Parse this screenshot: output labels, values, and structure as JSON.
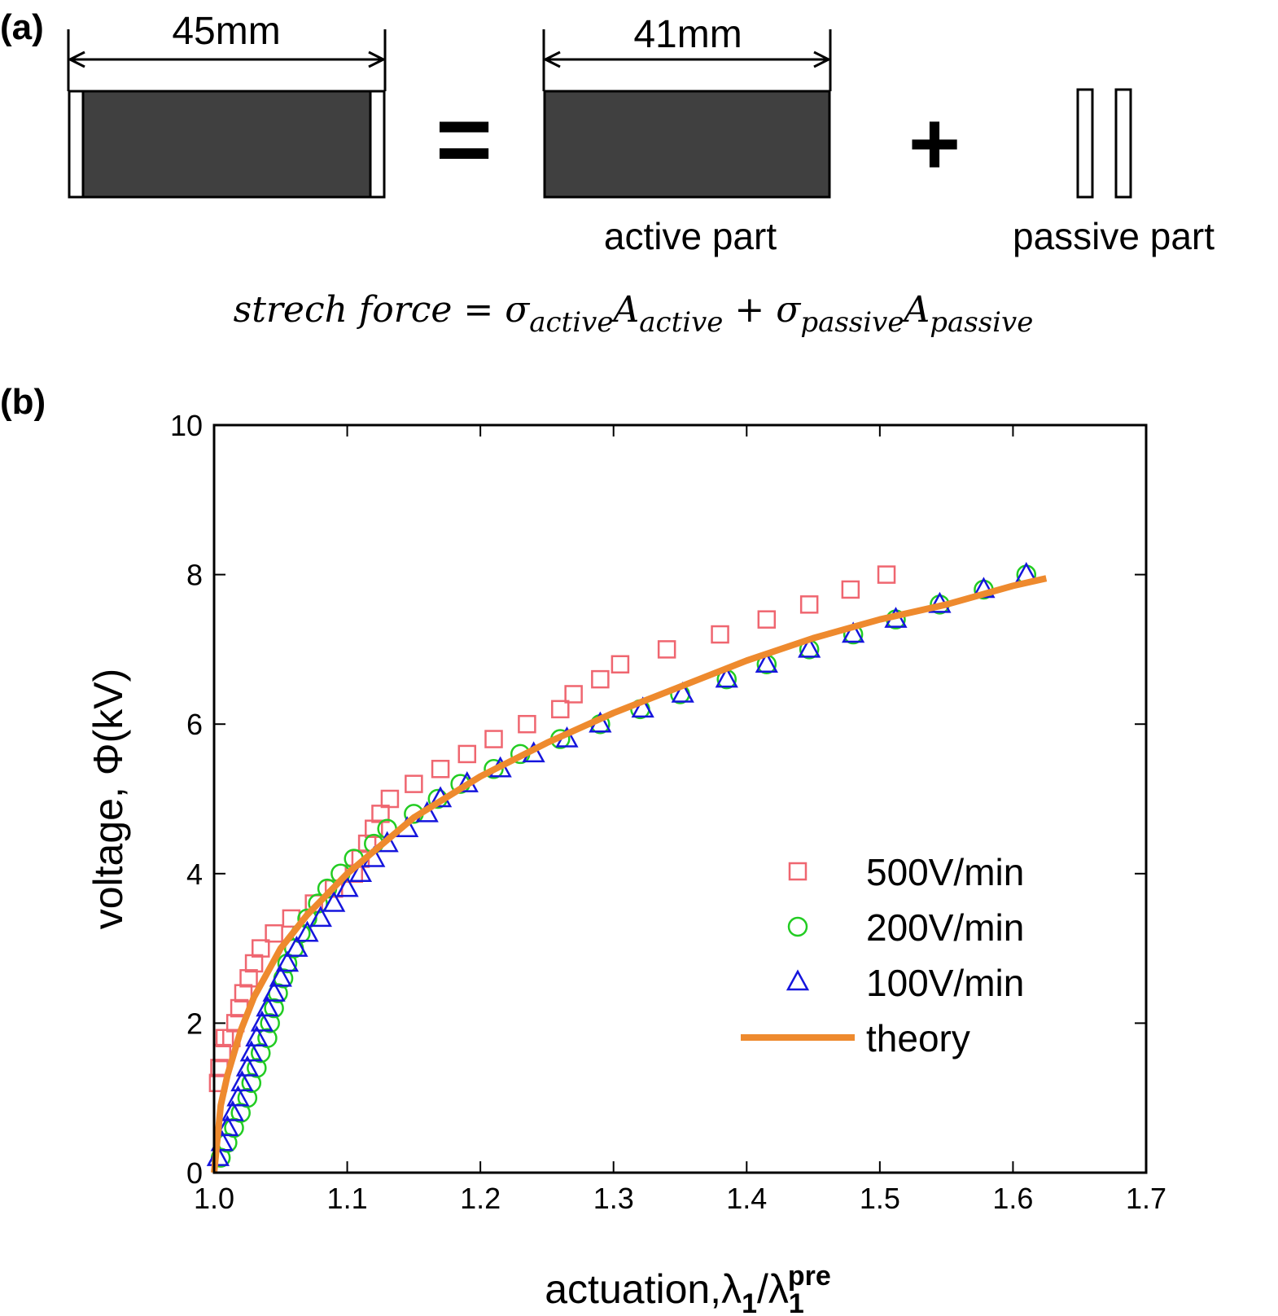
{
  "panel_a": {
    "label": "(a)",
    "total_width": "45mm",
    "active_width": "41mm",
    "equals": "=",
    "plus": "+",
    "active_label": "active part",
    "passive_label": "passive part",
    "equation": [
      "strech force = σ",
      "active",
      "A",
      "active",
      " + σ",
      "passive",
      "A",
      "passive"
    ]
  },
  "chart_data": {
    "type": "scatter",
    "panel_label": "(b)",
    "x_label": [
      "actuation,λ",
      "1",
      "/λ",
      "1",
      "pre"
    ],
    "y_label": "voltage,  Φ(kV)",
    "xlim": [
      1.0,
      1.7
    ],
    "ylim": [
      0,
      10
    ],
    "xticks": [
      {
        "value": 1.0,
        "label": "1.0"
      },
      1.1,
      1.2,
      1.3,
      1.4,
      1.5,
      1.6,
      1.7
    ],
    "yticks": [
      0,
      2,
      4,
      6,
      8,
      10
    ],
    "legend": "lower right",
    "series": [
      {
        "name": "500V/min",
        "color": "#ef6670",
        "marker": "square",
        "x": [
          1.003,
          1.004,
          1.006,
          1.008,
          1.013,
          1.016,
          1.019,
          1.022,
          1.026,
          1.03,
          1.035,
          1.045,
          1.058,
          1.075,
          1.09,
          1.105,
          1.11,
          1.115,
          1.12,
          1.125,
          1.132,
          1.15,
          1.17,
          1.19,
          1.21,
          1.235,
          1.26,
          1.27,
          1.29,
          1.305,
          1.34,
          1.38,
          1.415,
          1.447,
          1.478,
          1.505
        ],
        "values": [
          1.2,
          1.4,
          1.6,
          1.8,
          1.8,
          2.0,
          2.2,
          2.4,
          2.6,
          2.8,
          3.0,
          3.2,
          3.4,
          3.6,
          3.8,
          4.0,
          4.2,
          4.4,
          4.6,
          4.8,
          5.0,
          5.2,
          5.4,
          5.6,
          5.8,
          6.0,
          6.2,
          6.4,
          6.6,
          6.8,
          7.0,
          7.2,
          7.4,
          7.6,
          7.8,
          8.0
        ]
      },
      {
        "name": "200V/min",
        "color": "#22cc22",
        "marker": "circle",
        "x": [
          1.005,
          1.01,
          1.015,
          1.02,
          1.025,
          1.028,
          1.032,
          1.035,
          1.04,
          1.042,
          1.045,
          1.048,
          1.052,
          1.055,
          1.06,
          1.065,
          1.07,
          1.078,
          1.085,
          1.095,
          1.105,
          1.12,
          1.13,
          1.15,
          1.168,
          1.185,
          1.21,
          1.23,
          1.26,
          1.29,
          1.32,
          1.35,
          1.385,
          1.415,
          1.447,
          1.48,
          1.512,
          1.545,
          1.578,
          1.61
        ],
        "values": [
          0.2,
          0.4,
          0.6,
          0.8,
          1.0,
          1.2,
          1.4,
          1.6,
          1.8,
          2.0,
          2.2,
          2.4,
          2.6,
          2.8,
          3.0,
          3.2,
          3.4,
          3.6,
          3.8,
          4.0,
          4.2,
          4.4,
          4.6,
          4.8,
          5.0,
          5.2,
          5.4,
          5.6,
          5.8,
          6.0,
          6.2,
          6.4,
          6.6,
          6.8,
          7.0,
          7.2,
          7.4,
          7.6,
          7.8,
          8.0
        ]
      },
      {
        "name": "100V/min",
        "color": "#1515dd",
        "marker": "triangle",
        "x": [
          1.003,
          1.006,
          1.01,
          1.014,
          1.018,
          1.021,
          1.025,
          1.028,
          1.032,
          1.036,
          1.04,
          1.045,
          1.05,
          1.055,
          1.062,
          1.07,
          1.08,
          1.09,
          1.1,
          1.11,
          1.12,
          1.13,
          1.145,
          1.16,
          1.17,
          1.19,
          1.215,
          1.24,
          1.265,
          1.29,
          1.322,
          1.352,
          1.385,
          1.415,
          1.447,
          1.48,
          1.512,
          1.545,
          1.578,
          1.61
        ],
        "values": [
          0.2,
          0.4,
          0.6,
          0.8,
          1.0,
          1.2,
          1.4,
          1.6,
          1.8,
          2.0,
          2.2,
          2.4,
          2.6,
          2.8,
          3.0,
          3.2,
          3.4,
          3.6,
          3.8,
          4.0,
          4.2,
          4.4,
          4.6,
          4.8,
          5.0,
          5.2,
          5.4,
          5.6,
          5.8,
          6.0,
          6.2,
          6.4,
          6.6,
          6.8,
          7.0,
          7.2,
          7.4,
          7.6,
          7.8,
          8.0
        ]
      },
      {
        "name": "theory",
        "color": "#ee8a2e",
        "marker": "line",
        "x": [
          1.0,
          1.005,
          1.01,
          1.02,
          1.03,
          1.05,
          1.07,
          1.1,
          1.15,
          1.2,
          1.25,
          1.3,
          1.35,
          1.4,
          1.45,
          1.5,
          1.55,
          1.6,
          1.625
        ],
        "values": [
          0,
          0.9,
          1.3,
          1.9,
          2.35,
          3.0,
          3.45,
          4.0,
          4.75,
          5.3,
          5.75,
          6.15,
          6.5,
          6.85,
          7.15,
          7.4,
          7.6,
          7.85,
          7.95
        ]
      }
    ]
  }
}
